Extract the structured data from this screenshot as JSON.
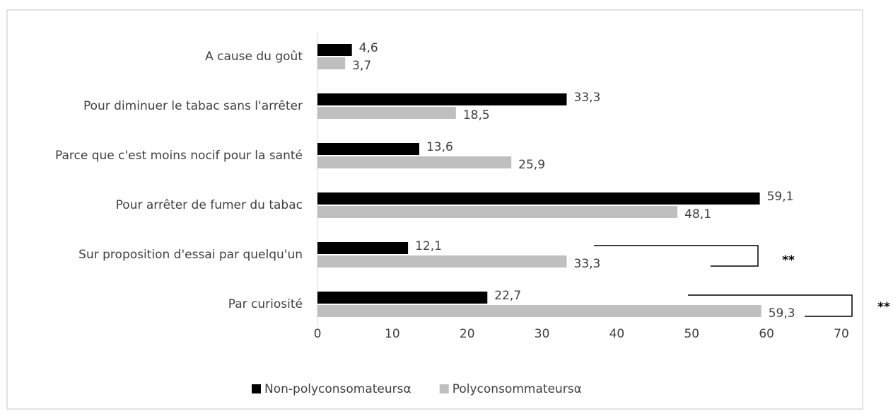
{
  "chart_data": {
    "type": "barh",
    "categories": [
      "A cause du goût",
      "Pour diminuer le tabac sans l'arrêter",
      "Parce que c'est moins nocif pour la santé",
      "Pour arrêter de fumer du tabac",
      "Sur proposition d'essai par quelqu'un",
      "Par curiosité"
    ],
    "series": [
      {
        "name": "Non-polyconsomateursα",
        "color": "#000000",
        "values": [
          4.6,
          33.3,
          13.6,
          59.1,
          12.1,
          22.7
        ],
        "value_labels": [
          "4,6",
          "33,3",
          "13,6",
          "59,1",
          "12,1",
          "22,7"
        ]
      },
      {
        "name": "Polyconsommateursα",
        "color": "#bfbfbf",
        "values": [
          3.7,
          18.5,
          25.9,
          48.1,
          33.3,
          59.3
        ],
        "value_labels": [
          "3,7",
          "18,5",
          "25,9",
          "48,1",
          "33,3",
          "59,3"
        ]
      }
    ],
    "xlim": [
      0,
      70
    ],
    "xticks": [
      0,
      10,
      20,
      30,
      40,
      50,
      60,
      70
    ],
    "annotations": [
      "**",
      "**"
    ],
    "legend": "bottom"
  }
}
